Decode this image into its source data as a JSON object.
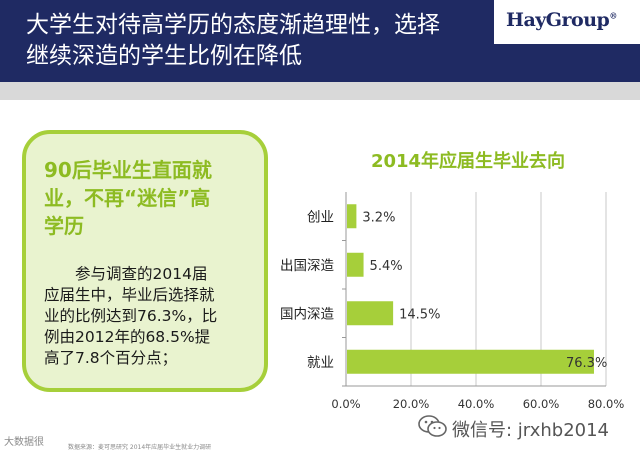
{
  "header": {
    "title_line1": "大学生对待高学历的态度渐趋理性，选择",
    "title_line2": "继续深造的学生比例在降低",
    "logo": "HayGroup",
    "logo_mark": "®"
  },
  "callout": {
    "head_line1": "90后毕业生直面就",
    "head_line2": "业，不再“迷信”高",
    "head_line3": "学历",
    "body_line1": "　　参与调查的2014届",
    "body_line2": "应届生中，毕业后选择就",
    "body_line3": "业的比例达到76.3%，比",
    "body_line4": "例由2012年的68.5%提",
    "body_line5": "高了7.8个百分点；"
  },
  "colors": {
    "header_bg": "#1f2a63",
    "accent_green": "#a6cf3a",
    "title_green": "#8dbb22",
    "callout_bg": "#e9f3cf"
  },
  "chart_data": {
    "type": "bar",
    "orientation": "horizontal",
    "title": "2014年应届生毕业去向",
    "categories": [
      "创业",
      "出国深造",
      "国内深造",
      "就业"
    ],
    "values": [
      3.2,
      5.4,
      14.5,
      76.3
    ],
    "value_labels": [
      "3.2%",
      "5.4%",
      "14.5%",
      "76.3%"
    ],
    "xlim": [
      0,
      80
    ],
    "x_ticks": [
      0,
      20,
      40,
      60,
      80
    ],
    "x_tick_labels": [
      "0.0%",
      "20.0%",
      "40.0%",
      "60.0%",
      "80.0%"
    ],
    "grid": true,
    "bar_color": "#a6cf3a"
  },
  "watermarks": {
    "left": "大数据很",
    "left_small": "数据来源：麦可思研究 2014年应届毕业生就业力调研",
    "right": "微信号: jrxhb2014"
  }
}
